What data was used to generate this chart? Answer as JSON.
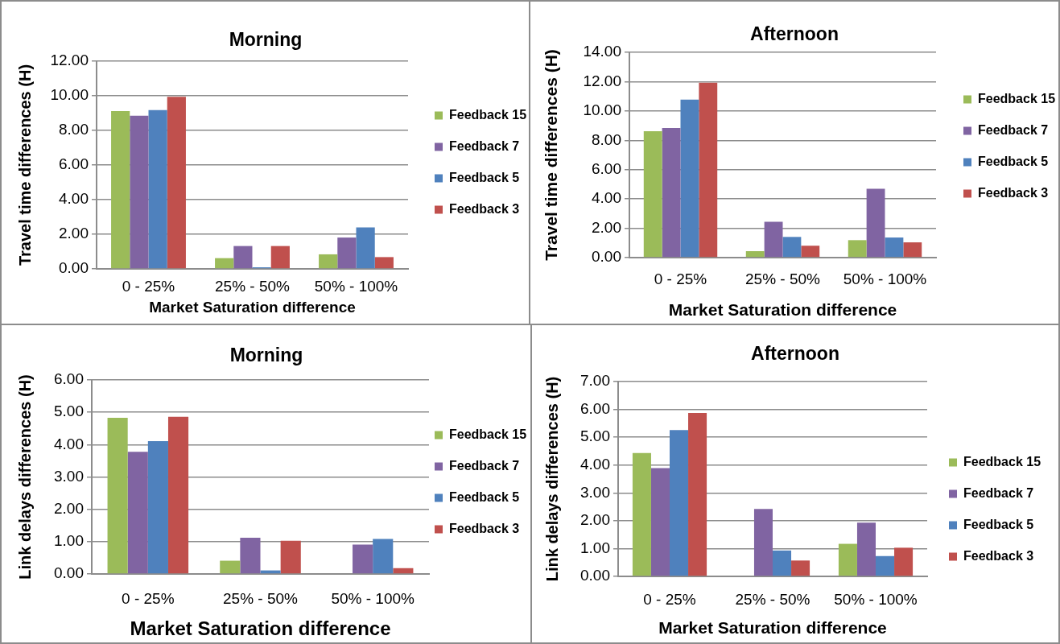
{
  "chart_data": [
    {
      "type": "bar",
      "title": "Morning",
      "xlabel": "Market Saturation difference",
      "ylabel": "Travel time differences (H)",
      "categories": [
        "0 - 25%",
        "25% - 50%",
        "50% - 100%"
      ],
      "series": [
        {
          "name": "Feedback 15",
          "color": "#9bbb59",
          "values": [
            9.12,
            0.62,
            0.84
          ]
        },
        {
          "name": "Feedback 7",
          "color": "#8064a2",
          "values": [
            8.85,
            1.32,
            1.81
          ]
        },
        {
          "name": "Feedback 5",
          "color": "#4f81bd",
          "values": [
            9.18,
            0.09,
            2.4
          ]
        },
        {
          "name": "Feedback 3",
          "color": "#c0504d",
          "values": [
            9.94,
            1.32,
            0.68
          ]
        }
      ],
      "ylim": [
        0,
        12
      ],
      "yticks": [
        {
          "value": 0,
          "label": "0.00"
        },
        {
          "value": 2,
          "label": "2.00"
        },
        {
          "value": 4,
          "label": "4.00"
        },
        {
          "value": 6,
          "label": "6.00"
        },
        {
          "value": 8,
          "label": "8.00"
        },
        {
          "value": 10,
          "label": "10.00"
        },
        {
          "value": 12,
          "label": "12.00"
        }
      ],
      "grid": "y",
      "legend": "right"
    },
    {
      "type": "bar",
      "title": "Afternoon",
      "xlabel": "Market Saturation difference",
      "ylabel": "Travel time differences (H)",
      "categories": [
        "0 - 25%",
        "25% - 50%",
        "50% - 100%"
      ],
      "series": [
        {
          "name": "Feedback 15",
          "color": "#9bbb59",
          "values": [
            8.62,
            0.44,
            1.19
          ]
        },
        {
          "name": "Feedback 7",
          "color": "#8064a2",
          "values": [
            8.84,
            2.45,
            4.7
          ]
        },
        {
          "name": "Feedback 5",
          "color": "#4f81bd",
          "values": [
            10.78,
            1.41,
            1.37
          ]
        },
        {
          "name": "Feedback 3",
          "color": "#c0504d",
          "values": [
            11.93,
            0.81,
            1.04
          ]
        }
      ],
      "ylim": [
        0,
        14
      ],
      "yticks": [
        {
          "value": 0,
          "label": "0.00"
        },
        {
          "value": 2,
          "label": "2.00"
        },
        {
          "value": 4,
          "label": "4.00"
        },
        {
          "value": 6,
          "label": "6.00"
        },
        {
          "value": 8,
          "label": "8.00"
        },
        {
          "value": 10,
          "label": "10.00"
        },
        {
          "value": 12,
          "label": "12.00"
        },
        {
          "value": 14,
          "label": "14.00"
        }
      ],
      "grid": "y",
      "legend": "right"
    },
    {
      "type": "bar",
      "title": "Morning",
      "xlabel": "Market Saturation difference",
      "ylabel": "Link delays differences (H)",
      "categories": [
        "0 - 25%",
        "25% - 50%",
        "50% - 100%"
      ],
      "series": [
        {
          "name": "Feedback 15",
          "color": "#9bbb59",
          "values": [
            4.83,
            0.41,
            null
          ]
        },
        {
          "name": "Feedback 7",
          "color": "#8064a2",
          "values": [
            3.78,
            1.12,
            0.91
          ]
        },
        {
          "name": "Feedback 5",
          "color": "#4f81bd",
          "values": [
            4.11,
            0.11,
            1.08
          ]
        },
        {
          "name": "Feedback 3",
          "color": "#c0504d",
          "values": [
            4.86,
            1.03,
            0.18
          ]
        }
      ],
      "ylim": [
        0,
        6
      ],
      "yticks": [
        {
          "value": 0,
          "label": "0.00"
        },
        {
          "value": 1,
          "label": "1.00"
        },
        {
          "value": 2,
          "label": "2.00"
        },
        {
          "value": 3,
          "label": "3.00"
        },
        {
          "value": 4,
          "label": "4.00"
        },
        {
          "value": 5,
          "label": "5.00"
        },
        {
          "value": 6,
          "label": "6.00"
        }
      ],
      "grid": "y",
      "legend": "right"
    },
    {
      "type": "bar",
      "title": "Afternoon",
      "xlabel": "Market Saturation difference",
      "ylabel": "Link delays differences (H)",
      "categories": [
        "0 - 25%",
        "25% - 50%",
        "50% - 100%"
      ],
      "series": [
        {
          "name": "Feedback 15",
          "color": "#9bbb59",
          "values": [
            4.43,
            null,
            1.17
          ]
        },
        {
          "name": "Feedback 7",
          "color": "#8064a2",
          "values": [
            3.89,
            2.42,
            1.93
          ]
        },
        {
          "name": "Feedback 5",
          "color": "#4f81bd",
          "values": [
            5.26,
            0.93,
            0.73
          ]
        },
        {
          "name": "Feedback 3",
          "color": "#c0504d",
          "values": [
            5.87,
            0.57,
            1.03
          ]
        }
      ],
      "ylim": [
        0,
        7
      ],
      "yticks": [
        {
          "value": 0,
          "label": "0.00"
        },
        {
          "value": 1,
          "label": "1.00"
        },
        {
          "value": 2,
          "label": "2.00"
        },
        {
          "value": 3,
          "label": "3.00"
        },
        {
          "value": 4,
          "label": "4.00"
        },
        {
          "value": 5,
          "label": "5.00"
        },
        {
          "value": 6,
          "label": "6.00"
        },
        {
          "value": 7,
          "label": "7.00"
        }
      ],
      "grid": "y",
      "legend": "right"
    }
  ]
}
